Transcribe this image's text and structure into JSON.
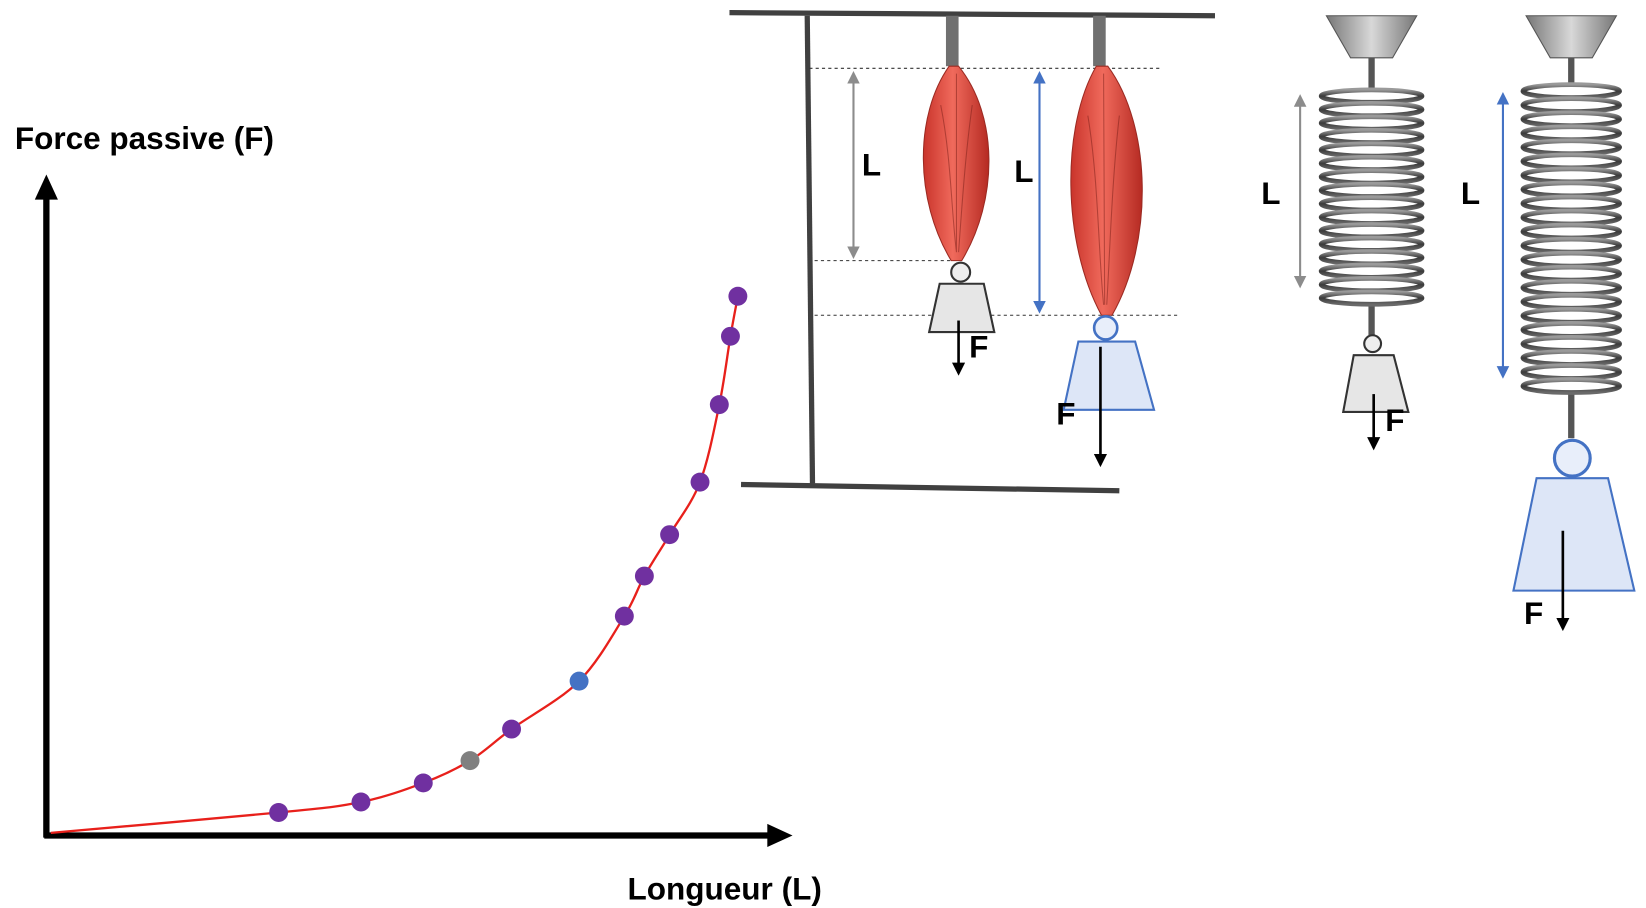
{
  "chart_data": {
    "type": "scatter",
    "y_label": "Force passive (F)",
    "x_label": "Longueur (L)",
    "xlim": [
      0,
      100
    ],
    "ylim": [
      0,
      100
    ],
    "axis_color": "#000000",
    "curve": {
      "color": "#e8201b",
      "x": [
        0.6,
        31.3,
        42.4,
        50.8,
        57.1,
        62.7,
        71.8,
        77.9,
        80.6,
        84.0,
        88.1,
        90.7,
        92.2,
        93.2
      ],
      "values": [
        0.4,
        3.5,
        5.1,
        8.0,
        11.4,
        16.2,
        23.5,
        33.4,
        39.5,
        45.8,
        53.8,
        65.6,
        76.0,
        82.1
      ]
    },
    "points": {
      "x": [
        31.3,
        42.4,
        50.8,
        57.1,
        62.7,
        71.8,
        77.9,
        80.6,
        84.0,
        88.1,
        90.7,
        92.2,
        93.2
      ],
      "values": [
        3.5,
        5.1,
        8.0,
        11.4,
        16.2,
        23.5,
        33.4,
        39.5,
        45.8,
        53.8,
        65.6,
        76.0,
        82.1
      ],
      "colors": [
        "#7030a0",
        "#7030a0",
        "#7030a0",
        "#808080",
        "#7030a0",
        "#4472c4",
        "#7030a0",
        "#7030a0",
        "#7030a0",
        "#7030a0",
        "#7030a0",
        "#7030a0",
        "#7030a0"
      ]
    }
  },
  "illustration": {
    "muscle_short": {
      "length_label": "L",
      "force_label": "F"
    },
    "muscle_long": {
      "length_label": "L",
      "force_label": "F"
    },
    "spring_short": {
      "length_label": "L",
      "force_label": "F"
    },
    "spring_long": {
      "length_label": "L",
      "force_label": "F"
    }
  }
}
